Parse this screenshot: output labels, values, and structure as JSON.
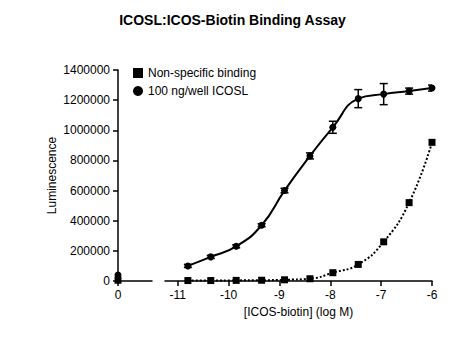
{
  "chart_data": [
    {
      "type": "line",
      "title": "ICOSL:ICOS-Biotin Binding Assay",
      "y_label": "Luminescence",
      "x": [
        0
      ],
      "xlim": [
        0,
        1
      ],
      "xticks": [
        0
      ],
      "ylim": [
        0,
        1400000
      ],
      "yticks": [
        0,
        200000,
        400000,
        600000,
        800000,
        1000000,
        1200000,
        1400000
      ],
      "grid": false,
      "legend": "upper left",
      "series": [
        {
          "name": "Non-specific binding",
          "color": "#000000",
          "marker": "square",
          "line_style": "dotted",
          "values": [
            5000
          ]
        },
        {
          "name": "100 ng/well ICOSL",
          "color": "#000000",
          "marker": "circle",
          "line_style": "solid",
          "values": [
            40000
          ]
        }
      ]
    },
    {
      "type": "line",
      "x_label": "[ICOS-biotin] (log M)",
      "x": [
        -10.8,
        -10.35,
        -9.85,
        -9.35,
        -8.9,
        -8.4,
        -7.95,
        -7.45,
        -6.95,
        -6.45,
        -6
      ],
      "xlim": [
        -11.25,
        -6
      ],
      "xticks": [
        -11,
        -10,
        -9,
        -8,
        -7,
        -6
      ],
      "ylim": [
        0,
        1400000
      ],
      "yticks": [
        0,
        200000,
        400000,
        600000,
        800000,
        1000000,
        1200000,
        1400000
      ],
      "grid": false,
      "series": [
        {
          "name": "Non-specific binding",
          "color": "#000000",
          "marker": "square",
          "line_style": "dotted",
          "values": [
            3000,
            3000,
            4000,
            5000,
            8000,
            15000,
            55000,
            110000,
            260000,
            520000,
            920000
          ]
        },
        {
          "name": "100 ng/well ICOSL",
          "color": "#000000",
          "marker": "circle",
          "line_style": "solid",
          "values": [
            100000,
            160000,
            230000,
            370000,
            600000,
            830000,
            1020000,
            1210000,
            1240000,
            1260000,
            1280000
          ],
          "errors": [
            10000,
            10000,
            10000,
            10000,
            15000,
            20000,
            40000,
            60000,
            70000,
            20000,
            20000
          ]
        }
      ]
    }
  ]
}
